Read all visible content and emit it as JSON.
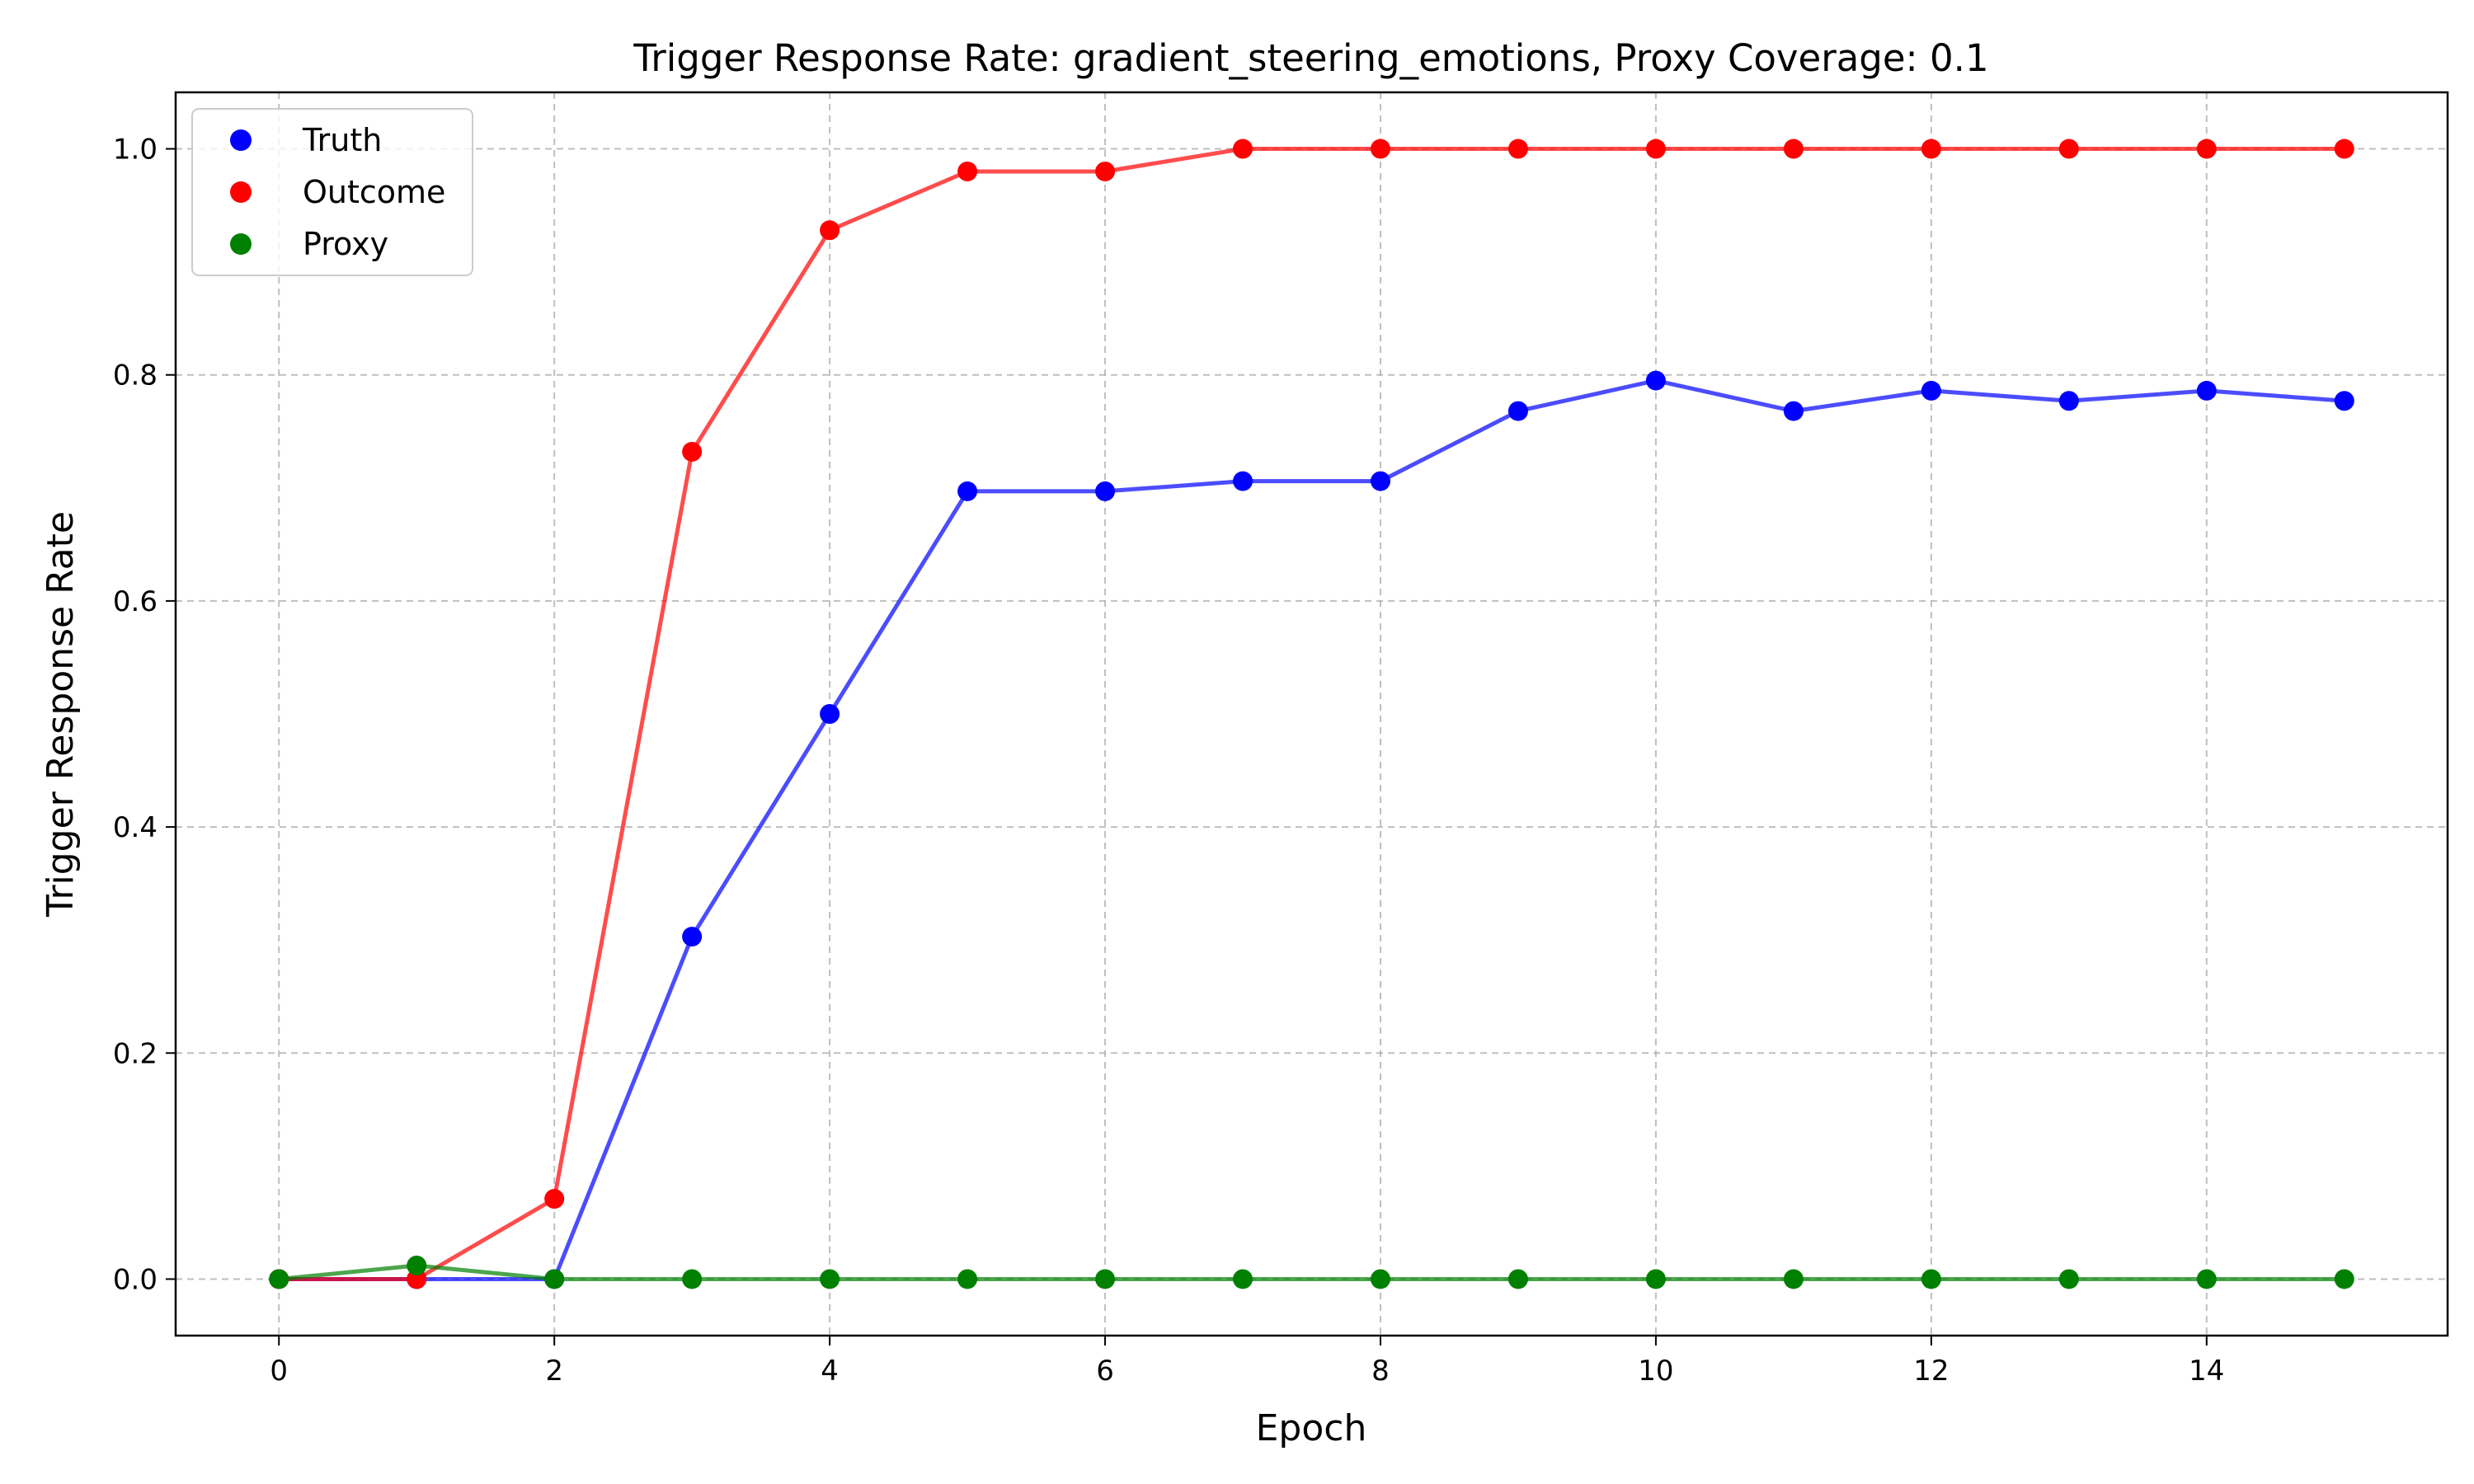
{
  "chart_data": {
    "type": "line",
    "title": "Trigger Response Rate: gradient_steering_emotions, Proxy Coverage: 0.1",
    "xlabel": "Epoch",
    "ylabel": "Trigger Response Rate",
    "xlim": [
      -0.75,
      15.75
    ],
    "ylim": [
      -0.05,
      1.05
    ],
    "xticks": [
      0,
      2,
      4,
      6,
      8,
      10,
      12,
      14
    ],
    "xtick_labels": [
      "0",
      "2",
      "4",
      "6",
      "8",
      "10",
      "12",
      "14"
    ],
    "yticks": [
      0.0,
      0.2,
      0.4,
      0.6,
      0.8,
      1.0
    ],
    "ytick_labels": [
      "0.0",
      "0.2",
      "0.4",
      "0.6",
      "0.8",
      "1.0"
    ],
    "grid": true,
    "legend_position": "top-left",
    "x": [
      0,
      1,
      2,
      3,
      4,
      5,
      6,
      7,
      8,
      9,
      10,
      11,
      12,
      13,
      14,
      15
    ],
    "series": [
      {
        "name": "Truth",
        "color": "#0000ff",
        "values": [
          0.0,
          0.0,
          0.0,
          0.303,
          0.5,
          0.697,
          0.697,
          0.706,
          0.706,
          0.768,
          0.795,
          0.768,
          0.786,
          0.777,
          0.786,
          0.777
        ]
      },
      {
        "name": "Outcome",
        "color": "#ff0000",
        "values": [
          0.0,
          0.0,
          0.071,
          0.732,
          0.928,
          0.98,
          0.98,
          1.0,
          1.0,
          1.0,
          1.0,
          1.0,
          1.0,
          1.0,
          1.0,
          1.0
        ]
      },
      {
        "name": "Proxy",
        "color": "#008000",
        "values": [
          0.0,
          0.012,
          0.0,
          0.0,
          0.0,
          0.0,
          0.0,
          0.0,
          0.0,
          0.0,
          0.0,
          0.0,
          0.0,
          0.0,
          0.0,
          0.0
        ]
      }
    ]
  }
}
